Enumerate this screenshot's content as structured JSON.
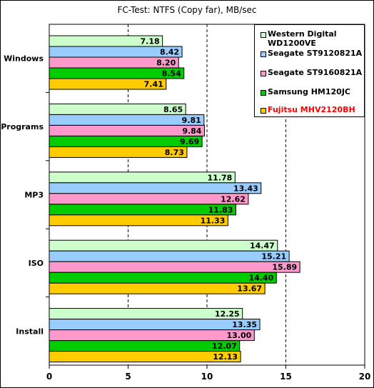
{
  "chart_data": {
    "type": "bar",
    "orientation": "horizontal",
    "title": "FC-Test: NTFS (Copy far), MB/sec",
    "categories": [
      "Windows",
      "Programs",
      "MP3",
      "ISO",
      "Install"
    ],
    "series": [
      {
        "name": "Western Digital WD1200VE",
        "color": "#ccffcc",
        "values": [
          7.18,
          8.65,
          11.78,
          14.47,
          12.25
        ]
      },
      {
        "name": "Seagate ST9120821A",
        "color": "#99ccff",
        "values": [
          8.42,
          9.81,
          13.43,
          15.21,
          13.35
        ]
      },
      {
        "name": "Seagate ST9160821A",
        "color": "#ff99cc",
        "values": [
          8.2,
          9.84,
          12.62,
          15.89,
          13.0
        ]
      },
      {
        "name": "Samsung HM120JC",
        "color": "#00cc00",
        "values": [
          8.54,
          9.69,
          11.83,
          14.4,
          12.07
        ]
      },
      {
        "name": "Fujitsu MHV2120BH",
        "color": "#ffcc00",
        "values": [
          7.41,
          8.73,
          11.33,
          13.67,
          12.13
        ]
      }
    ],
    "highlight_series_color": "#ff0000",
    "xlim": [
      0,
      20
    ],
    "xticks": [
      "0",
      "5",
      "10",
      "15",
      "20"
    ],
    "grid": "vertical dashed",
    "legend_position": "top-right"
  }
}
